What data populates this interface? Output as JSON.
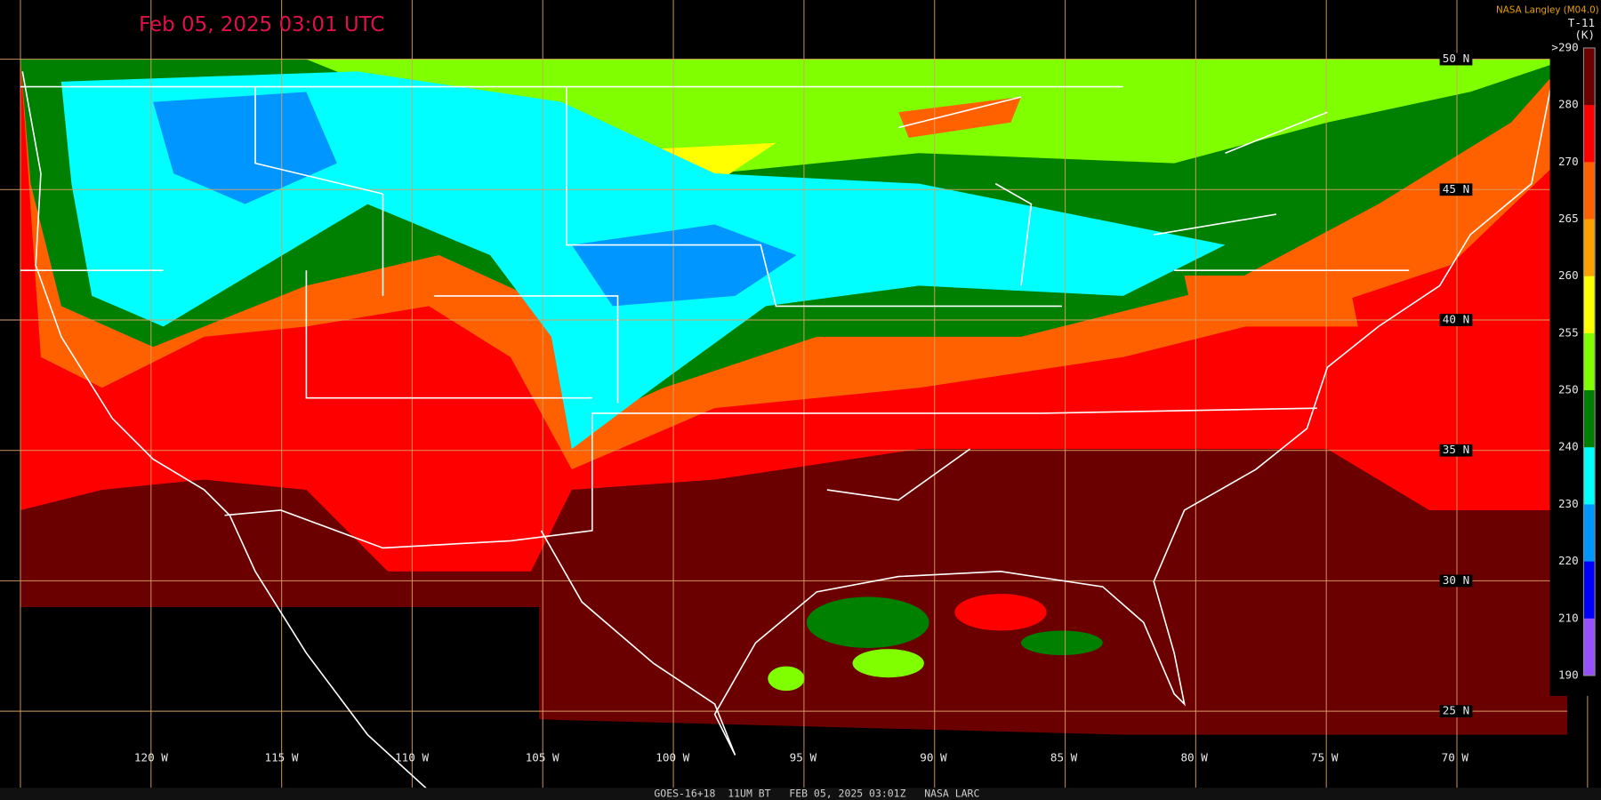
{
  "header": {
    "timestamp": "Feb 05, 2025 03:01 UTC",
    "credit": "NASA Langley (M04.0)"
  },
  "colorbar": {
    "title": "T-11",
    "unit": "(K)",
    "labels": [
      ">290",
      "280",
      "270",
      "265",
      "260",
      "255",
      "250",
      "240",
      "230",
      "220",
      "210",
      "190"
    ],
    "colors": [
      "#6b0000",
      "#ff0000",
      "#ff6000",
      "#ffa000",
      "#ffff00",
      "#80ff00",
      "#008000",
      "#00ffff",
      "#0096ff",
      "#0000ff",
      "#9650ff"
    ]
  },
  "grid": {
    "latitude_labels": [
      "50 N",
      "45 N",
      "40 N",
      "35 N",
      "30 N",
      "25 N"
    ],
    "longitude_labels": [
      "120 W",
      "115 W",
      "110 W",
      "105 W",
      "100 W",
      "95 W",
      "90 W",
      "85 W",
      "80 W",
      "75 W",
      "70 W"
    ]
  },
  "footer": "GOES-16+18  11UM BT   FEB 05, 2025 03:01Z   NASA LARC"
}
